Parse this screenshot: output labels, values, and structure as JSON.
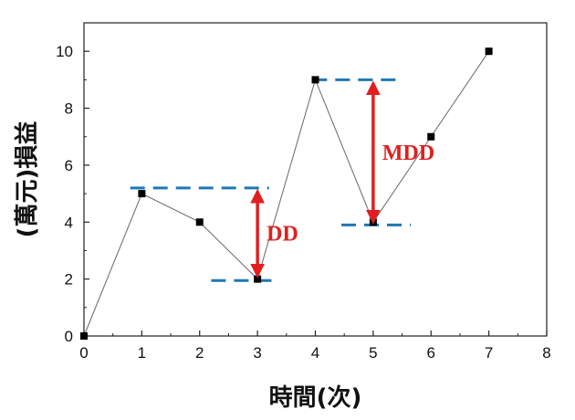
{
  "chart_data": {
    "type": "line",
    "xlabel": "時間(次)",
    "ylabel": "(萬元)損益",
    "xlim": [
      0,
      8
    ],
    "ylim": [
      0,
      11
    ],
    "xticks": [
      0,
      1,
      2,
      3,
      4,
      5,
      6,
      7,
      8
    ],
    "yticks": [
      0,
      2,
      4,
      6,
      8,
      10
    ],
    "grid": false,
    "series": [
      {
        "x": [
          0,
          1,
          2,
          3,
          4,
          5,
          6,
          7
        ],
        "y": [
          0,
          5,
          4,
          2,
          9,
          4,
          7,
          10
        ]
      }
    ],
    "annotations": [
      {
        "text": "DD",
        "from": [
          3,
          5.2
        ],
        "to": [
          3,
          2
        ],
        "color": "#e02020"
      },
      {
        "text": "MDD",
        "from": [
          5,
          9
        ],
        "to": [
          5,
          3.9
        ],
        "color": "#e02020"
      }
    ],
    "reference_lines": [
      {
        "y": 5.2,
        "x": [
          0.8,
          3.2
        ],
        "color": "#1f77b4"
      },
      {
        "y": 1.95,
        "x": [
          2.2,
          3.3
        ],
        "color": "#1f77b4"
      },
      {
        "y": 9.0,
        "x": [
          3.95,
          5.5
        ],
        "color": "#1f77b4"
      },
      {
        "y": 3.9,
        "x": [
          4.45,
          5.65
        ],
        "color": "#1f77b4"
      }
    ]
  }
}
